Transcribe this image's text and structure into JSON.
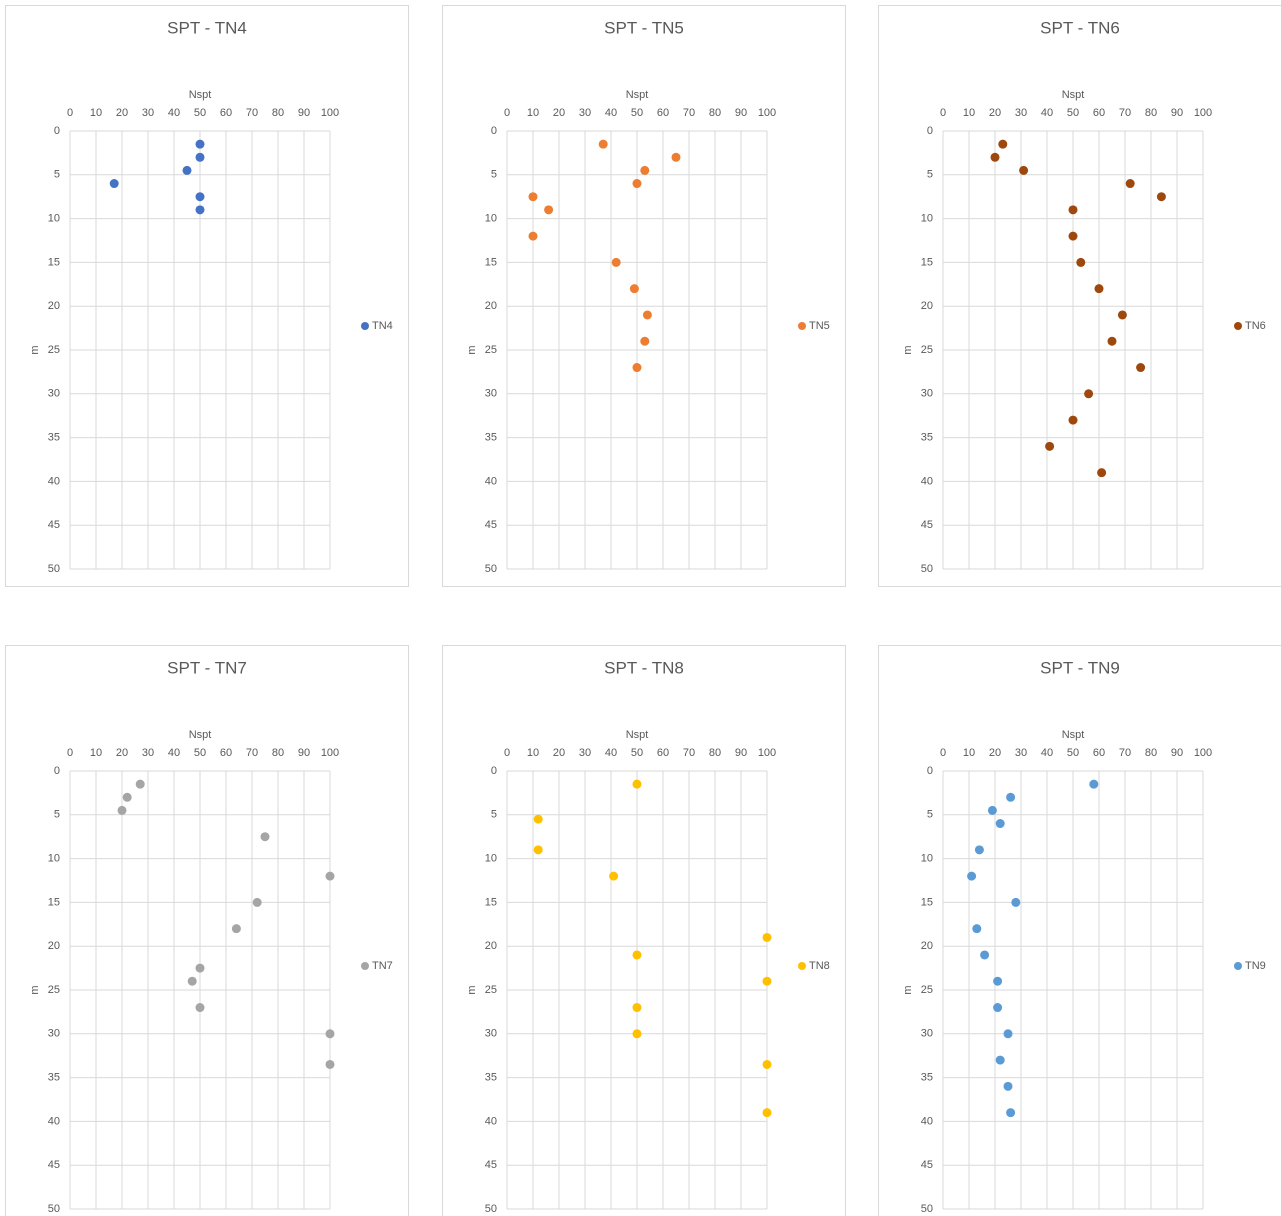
{
  "chart_data": [
    {
      "type": "scatter",
      "title": "SPT - TN4",
      "x_label": "Nspt",
      "y_label": "m",
      "xlim": [
        0,
        100
      ],
      "ylim": [
        0,
        50
      ],
      "y_inverted": true,
      "x_axis_position": "top",
      "xticks": [
        0,
        10,
        20,
        30,
        40,
        50,
        60,
        70,
        80,
        90,
        100
      ],
      "yticks": [
        0,
        5,
        10,
        15,
        20,
        25,
        30,
        35,
        40,
        45,
        50
      ],
      "grid": true,
      "legend": "right",
      "series": [
        {
          "name": "TN4",
          "color": "#4472c4",
          "x": [
            50,
            50,
            45,
            17,
            50,
            50
          ],
          "values": [
            1.5,
            3,
            4.5,
            6,
            7.5,
            9
          ]
        }
      ]
    },
    {
      "type": "scatter",
      "title": "SPT - TN5",
      "x_label": "Nspt",
      "y_label": "m",
      "xlim": [
        0,
        100
      ],
      "ylim": [
        0,
        50
      ],
      "y_inverted": true,
      "x_axis_position": "top",
      "xticks": [
        0,
        10,
        20,
        30,
        40,
        50,
        60,
        70,
        80,
        90,
        100
      ],
      "yticks": [
        0,
        5,
        10,
        15,
        20,
        25,
        30,
        35,
        40,
        45,
        50
      ],
      "grid": true,
      "legend": "right",
      "series": [
        {
          "name": "TN5",
          "color": "#ed7d31",
          "x": [
            37,
            65,
            53,
            50,
            10,
            16,
            10,
            42,
            49,
            54,
            53,
            50
          ],
          "values": [
            1.5,
            3,
            4.5,
            6,
            7.5,
            9,
            12,
            15,
            18,
            21,
            24,
            27
          ]
        }
      ]
    },
    {
      "type": "scatter",
      "title": "SPT - TN6",
      "x_label": "Nspt",
      "y_label": "m",
      "xlim": [
        0,
        100
      ],
      "ylim": [
        0,
        50
      ],
      "y_inverted": true,
      "x_axis_position": "top",
      "xticks": [
        0,
        10,
        20,
        30,
        40,
        50,
        60,
        70,
        80,
        90,
        100
      ],
      "yticks": [
        0,
        5,
        10,
        15,
        20,
        25,
        30,
        35,
        40,
        45,
        50
      ],
      "grid": true,
      "legend": "right",
      "series": [
        {
          "name": "TN6",
          "color": "#9e480e",
          "x": [
            23,
            20,
            31,
            72,
            84,
            50,
            50,
            53,
            60,
            69,
            65,
            76,
            56,
            50,
            41,
            61
          ],
          "values": [
            1.5,
            3,
            4.5,
            6,
            7.5,
            9,
            12,
            15,
            18,
            21,
            24,
            27,
            30,
            33,
            36,
            39
          ]
        }
      ]
    },
    {
      "type": "scatter",
      "title": "SPT - TN7",
      "x_label": "Nspt",
      "y_label": "m",
      "xlim": [
        0,
        100
      ],
      "ylim": [
        0,
        50
      ],
      "y_inverted": true,
      "x_axis_position": "top",
      "xticks": [
        0,
        10,
        20,
        30,
        40,
        50,
        60,
        70,
        80,
        90,
        100
      ],
      "yticks": [
        0,
        5,
        10,
        15,
        20,
        25,
        30,
        35,
        40,
        45,
        50
      ],
      "grid": true,
      "legend": "right",
      "series": [
        {
          "name": "TN7",
          "color": "#a5a5a5",
          "x": [
            27,
            22,
            20,
            75,
            100,
            72,
            64,
            50,
            47,
            50,
            100,
            100
          ],
          "values": [
            1.5,
            3,
            4.5,
            7.5,
            12,
            15,
            18,
            22.5,
            24,
            27,
            30,
            33.5
          ]
        }
      ]
    },
    {
      "type": "scatter",
      "title": "SPT - TN8",
      "x_label": "Nspt",
      "y_label": "m",
      "xlim": [
        0,
        100
      ],
      "ylim": [
        0,
        50
      ],
      "y_inverted": true,
      "x_axis_position": "top",
      "xticks": [
        0,
        10,
        20,
        30,
        40,
        50,
        60,
        70,
        80,
        90,
        100
      ],
      "yticks": [
        0,
        5,
        10,
        15,
        20,
        25,
        30,
        35,
        40,
        45,
        50
      ],
      "grid": true,
      "legend": "right",
      "series": [
        {
          "name": "TN8",
          "color": "#ffc000",
          "x": [
            50,
            12,
            12,
            41,
            100,
            50,
            100,
            50,
            50,
            100,
            100
          ],
          "values": [
            1.5,
            5.5,
            9,
            12,
            19,
            21,
            24,
            27,
            30,
            33.5,
            39
          ]
        }
      ]
    },
    {
      "type": "scatter",
      "title": "SPT - TN9",
      "x_label": "Nspt",
      "y_label": "m",
      "xlim": [
        0,
        100
      ],
      "ylim": [
        0,
        50
      ],
      "y_inverted": true,
      "x_axis_position": "top",
      "xticks": [
        0,
        10,
        20,
        30,
        40,
        50,
        60,
        70,
        80,
        90,
        100
      ],
      "yticks": [
        0,
        5,
        10,
        15,
        20,
        25,
        30,
        35,
        40,
        45,
        50
      ],
      "grid": true,
      "legend": "right",
      "series": [
        {
          "name": "TN9",
          "color": "#5b9bd5",
          "x": [
            58,
            26,
            19,
            22,
            14,
            11,
            28,
            13,
            16,
            21,
            21,
            25,
            22,
            25,
            26
          ],
          "values": [
            1.5,
            3,
            4.5,
            6,
            9,
            12,
            15,
            18,
            21,
            24,
            27,
            30,
            33,
            36,
            39
          ]
        }
      ]
    }
  ]
}
